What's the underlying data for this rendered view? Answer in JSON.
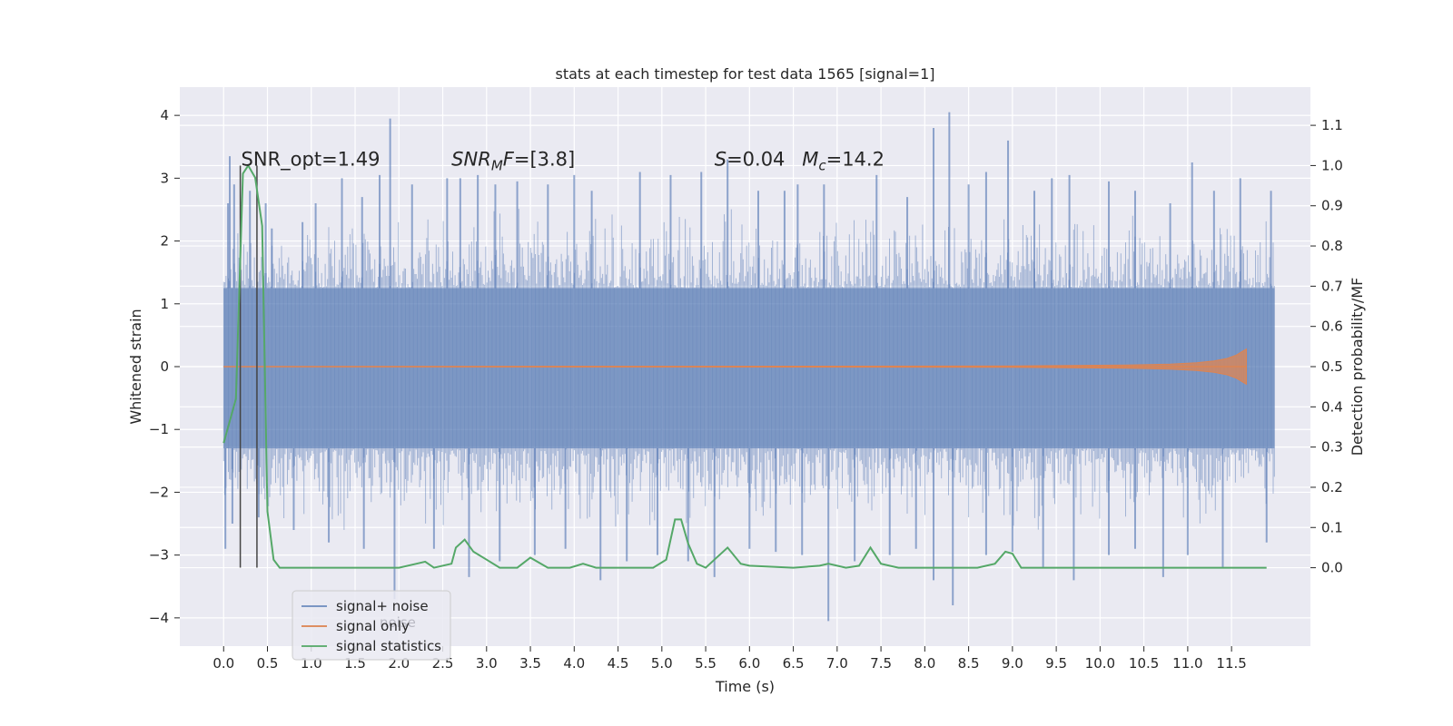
{
  "chart_data": {
    "type": "line",
    "title": "stats at each timestep for test data 1565 [signal=1]",
    "xlabel": "Time (s)",
    "ylabel_left": "Whitened strain",
    "ylabel_right": "Detection probability/MF",
    "xlim": [
      -0.5,
      12.4
    ],
    "ylim_left": [
      -4.45,
      4.45
    ],
    "ylim_right": [
      -0.195,
      1.195
    ],
    "xticks": [
      0.0,
      0.5,
      1.0,
      1.5,
      2.0,
      2.5,
      3.0,
      3.5,
      4.0,
      4.5,
      5.0,
      5.5,
      6.0,
      6.5,
      7.0,
      7.5,
      8.0,
      8.5,
      9.0,
      9.5,
      10.0,
      10.5,
      11.0,
      11.5
    ],
    "xtick_labels": [
      "0.0",
      "0.5",
      "1.0",
      "1.5",
      "2.0",
      "2.5",
      "3.0",
      "3.5",
      "4.0",
      "4.5",
      "5.0",
      "5.5",
      "6.0",
      "6.5",
      "7.0",
      "7.5",
      "8.0",
      "8.5",
      "9.0",
      "9.5",
      "10.0",
      "10.5",
      "11.0",
      "11.5"
    ],
    "yticks_left": [
      -4,
      -3,
      -2,
      -1,
      0,
      1,
      2,
      3,
      4
    ],
    "ytick_labels_left": [
      "−4",
      "−3",
      "−2",
      "−1",
      "0",
      "1",
      "2",
      "3",
      "4"
    ],
    "yticks_right": [
      0.0,
      0.1,
      0.2,
      0.3,
      0.4,
      0.5,
      0.6,
      0.7,
      0.8,
      0.9,
      1.0,
      1.1
    ],
    "ytick_labels_right": [
      "0.0",
      "0.1",
      "0.2",
      "0.3",
      "0.4",
      "0.5",
      "0.6",
      "0.7",
      "0.8",
      "0.9",
      "1.0",
      "1.1"
    ],
    "grid": true,
    "legend_position": "lower-left",
    "colors": {
      "noise": "#4c72b0",
      "signal": "#dd8452",
      "stats": "#55a868",
      "background": "#eaeaf2",
      "grid": "#ffffff",
      "marker_line": "#444444"
    },
    "series": [
      {
        "name": "signal+ noise",
        "axis": "left",
        "kind": "noise-band",
        "x_range": [
          0.0,
          11.99
        ],
        "core_band": [
          -1.3,
          1.25
        ],
        "spikes_up": [
          {
            "x": 0.05,
            "y": 2.6
          },
          {
            "x": 0.07,
            "y": 3.35
          },
          {
            "x": 0.12,
            "y": 2.9
          },
          {
            "x": 0.3,
            "y": 2.8
          },
          {
            "x": 0.48,
            "y": 2.6
          },
          {
            "x": 0.55,
            "y": 2.2
          },
          {
            "x": 0.9,
            "y": 2.3
          },
          {
            "x": 1.05,
            "y": 2.6
          },
          {
            "x": 1.35,
            "y": 3.0
          },
          {
            "x": 1.58,
            "y": 2.7
          },
          {
            "x": 1.78,
            "y": 3.05
          },
          {
            "x": 1.9,
            "y": 3.95
          },
          {
            "x": 2.15,
            "y": 2.9
          },
          {
            "x": 2.55,
            "y": 3.0
          },
          {
            "x": 2.7,
            "y": 3.0
          },
          {
            "x": 2.9,
            "y": 3.05
          },
          {
            "x": 3.1,
            "y": 2.9
          },
          {
            "x": 3.35,
            "y": 2.95
          },
          {
            "x": 3.7,
            "y": 2.9
          },
          {
            "x": 4.0,
            "y": 3.05
          },
          {
            "x": 4.2,
            "y": 2.8
          },
          {
            "x": 4.75,
            "y": 3.1
          },
          {
            "x": 5.1,
            "y": 3.05
          },
          {
            "x": 5.45,
            "y": 3.1
          },
          {
            "x": 5.75,
            "y": 3.3
          },
          {
            "x": 6.1,
            "y": 2.8
          },
          {
            "x": 6.4,
            "y": 2.8
          },
          {
            "x": 6.55,
            "y": 2.9
          },
          {
            "x": 6.85,
            "y": 2.9
          },
          {
            "x": 7.45,
            "y": 3.05
          },
          {
            "x": 7.8,
            "y": 2.7
          },
          {
            "x": 8.1,
            "y": 3.8
          },
          {
            "x": 8.28,
            "y": 4.05
          },
          {
            "x": 8.5,
            "y": 2.9
          },
          {
            "x": 8.7,
            "y": 3.1
          },
          {
            "x": 8.95,
            "y": 3.6
          },
          {
            "x": 9.25,
            "y": 2.8
          },
          {
            "x": 9.45,
            "y": 3.0
          },
          {
            "x": 9.65,
            "y": 3.05
          },
          {
            "x": 10.1,
            "y": 2.95
          },
          {
            "x": 10.4,
            "y": 2.8
          },
          {
            "x": 10.8,
            "y": 2.6
          },
          {
            "x": 11.05,
            "y": 3.25
          },
          {
            "x": 11.3,
            "y": 2.8
          },
          {
            "x": 11.6,
            "y": 3.0
          },
          {
            "x": 11.95,
            "y": 2.8
          }
        ],
        "spikes_down": [
          {
            "x": 0.02,
            "y": -2.9
          },
          {
            "x": 0.1,
            "y": -2.5
          },
          {
            "x": 0.4,
            "y": -2.4
          },
          {
            "x": 0.8,
            "y": -2.6
          },
          {
            "x": 1.2,
            "y": -2.8
          },
          {
            "x": 1.6,
            "y": -2.9
          },
          {
            "x": 1.95,
            "y": -3.7
          },
          {
            "x": 2.4,
            "y": -2.9
          },
          {
            "x": 2.8,
            "y": -3.35
          },
          {
            "x": 3.15,
            "y": -3.1
          },
          {
            "x": 3.55,
            "y": -3.0
          },
          {
            "x": 3.9,
            "y": -2.9
          },
          {
            "x": 4.3,
            "y": -3.4
          },
          {
            "x": 4.6,
            "y": -3.1
          },
          {
            "x": 4.95,
            "y": -3.0
          },
          {
            "x": 5.3,
            "y": -3.1
          },
          {
            "x": 5.6,
            "y": -3.35
          },
          {
            "x": 6.0,
            "y": -2.9
          },
          {
            "x": 6.3,
            "y": -2.95
          },
          {
            "x": 6.6,
            "y": -3.0
          },
          {
            "x": 6.9,
            "y": -4.05
          },
          {
            "x": 7.2,
            "y": -3.1
          },
          {
            "x": 7.6,
            "y": -3.0
          },
          {
            "x": 7.9,
            "y": -2.9
          },
          {
            "x": 8.1,
            "y": -3.4
          },
          {
            "x": 8.32,
            "y": -3.8
          },
          {
            "x": 8.7,
            "y": -3.0
          },
          {
            "x": 9.0,
            "y": -2.95
          },
          {
            "x": 9.35,
            "y": -3.2
          },
          {
            "x": 9.7,
            "y": -3.4
          },
          {
            "x": 10.1,
            "y": -3.0
          },
          {
            "x": 10.4,
            "y": -2.9
          },
          {
            "x": 10.72,
            "y": -3.35
          },
          {
            "x": 11.0,
            "y": -3.0
          },
          {
            "x": 11.4,
            "y": -3.2
          },
          {
            "x": 11.9,
            "y": -2.8
          }
        ]
      },
      {
        "name": "signal only",
        "axis": "left",
        "kind": "chirp",
        "x": [
          0.0,
          9.0,
          9.8,
          10.3,
          10.8,
          11.1,
          11.3,
          11.45,
          11.55,
          11.62,
          11.67
        ],
        "amplitude": [
          0.0,
          0.01,
          0.02,
          0.025,
          0.04,
          0.06,
          0.09,
          0.13,
          0.18,
          0.24,
          0.28
        ]
      },
      {
        "name": "signal statistics",
        "axis": "right",
        "x": [
          0.0,
          0.14,
          0.22,
          0.28,
          0.36,
          0.44,
          0.5,
          0.57,
          0.64,
          1.0,
          1.5,
          2.0,
          2.2,
          2.3,
          2.4,
          2.6,
          2.65,
          2.75,
          2.85,
          3.0,
          3.15,
          3.35,
          3.5,
          3.7,
          3.95,
          4.1,
          4.25,
          4.5,
          4.9,
          5.05,
          5.15,
          5.22,
          5.3,
          5.4,
          5.5,
          5.6,
          5.75,
          5.9,
          6.0,
          6.5,
          6.8,
          6.9,
          7.1,
          7.25,
          7.38,
          7.5,
          7.7,
          8.0,
          8.6,
          8.8,
          8.92,
          9.0,
          9.1,
          9.5,
          10.0,
          11.0,
          11.5,
          11.9
        ],
        "y": [
          0.31,
          0.42,
          0.98,
          1.0,
          0.97,
          0.85,
          0.14,
          0.02,
          0.0,
          0.0,
          0.0,
          0.0,
          0.01,
          0.015,
          0.0,
          0.01,
          0.05,
          0.07,
          0.04,
          0.02,
          0.0,
          0.0,
          0.025,
          0.0,
          0.0,
          0.01,
          0.0,
          0.0,
          0.0,
          0.02,
          0.12,
          0.12,
          0.06,
          0.01,
          0.0,
          0.02,
          0.05,
          0.01,
          0.005,
          0.0,
          0.005,
          0.01,
          0.0,
          0.005,
          0.05,
          0.01,
          0.0,
          0.0,
          0.0,
          0.01,
          0.04,
          0.035,
          0.0,
          0.0,
          0.0,
          0.0,
          0.0,
          0.0
        ]
      }
    ],
    "vertical_lines": [
      0.19,
      0.38
    ],
    "vertical_line_range": [
      -3.2,
      3.2
    ],
    "annotations": [
      {
        "key": "snr_opt",
        "x": 0.2,
        "y": 3.2,
        "parts": [
          {
            "text": "SNR_opt=1.49",
            "style": "normal"
          }
        ]
      },
      {
        "key": "snr_mf",
        "x": 2.6,
        "y": 3.2,
        "parts": [
          {
            "text": "SNR",
            "style": "italic"
          },
          {
            "text": "M",
            "style": "italic-sub"
          },
          {
            "text": "F",
            "style": "italic"
          },
          {
            "text": "=[3.8]",
            "style": "normal"
          }
        ]
      },
      {
        "key": "s",
        "x": 5.6,
        "y": 3.2,
        "parts": [
          {
            "text": "S",
            "style": "italic"
          },
          {
            "text": "=0.04",
            "style": "normal"
          }
        ]
      },
      {
        "key": "mc",
        "x": 6.6,
        "y": 3.2,
        "parts": [
          {
            "text": "M",
            "style": "italic"
          },
          {
            "text": "c",
            "style": "italic-sub"
          },
          {
            "text": "=14.2",
            "style": "normal"
          }
        ]
      }
    ],
    "legend_ghost_text": "noise"
  }
}
